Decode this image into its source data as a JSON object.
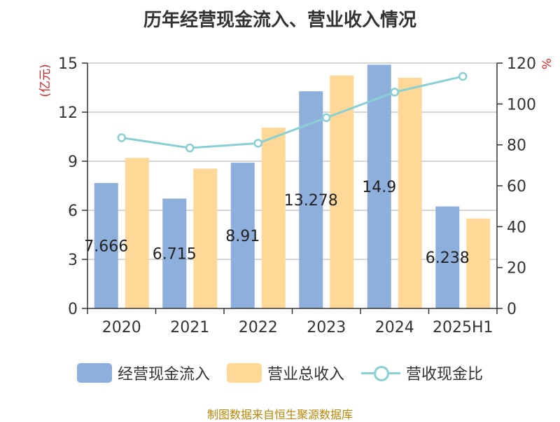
{
  "chart_data": {
    "type": "bar",
    "title": "历年经营现金流入、营业收入情况",
    "categories": [
      "2020",
      "2021",
      "2022",
      "2023",
      "2024",
      "2025H1"
    ],
    "y_left": {
      "label": "(亿元)",
      "ticks": [
        "0",
        "3",
        "6",
        "9",
        "12",
        "15"
      ],
      "range": [
        0,
        15
      ]
    },
    "y_right": {
      "label": "%",
      "ticks": [
        "0",
        "20",
        "40",
        "60",
        "80",
        "100",
        "120"
      ],
      "range": [
        0,
        120
      ]
    },
    "grid": true,
    "legend_position": "bottom",
    "series": [
      {
        "name": "经营现金流入",
        "kind": "bar",
        "axis": "left",
        "color": "#8eaedc",
        "values": [
          7.666,
          6.715,
          8.91,
          13.278,
          14.9,
          6.238
        ],
        "labels": [
          "7.666",
          "6.715",
          "8.91",
          "13.278",
          "14.9",
          "6.238"
        ]
      },
      {
        "name": "营业总收入",
        "kind": "bar",
        "axis": "left",
        "color": "#ffd898",
        "values": [
          9.2,
          8.55,
          11.05,
          14.25,
          14.1,
          5.5
        ]
      },
      {
        "name": "营收现金比",
        "kind": "line",
        "axis": "right",
        "color": "#88d0d4",
        "values": [
          83.5,
          78.5,
          80.8,
          93.3,
          105.8,
          113.5
        ]
      }
    ]
  },
  "source_note": "制图数据来自恒生聚源数据库"
}
